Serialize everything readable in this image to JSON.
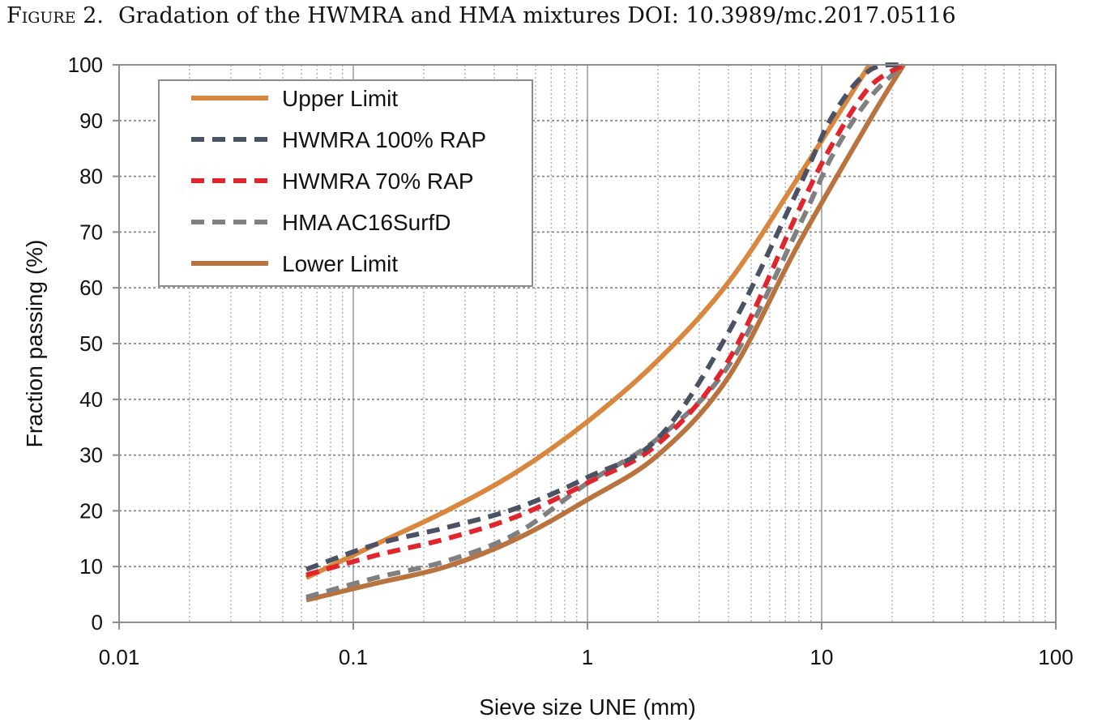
{
  "caption": {
    "figure_label": "Figure 2.",
    "text": "Gradation of the HWMRA and HMA mixtures DOI: 10.3989/mc.2017.05116"
  },
  "chart_data": {
    "type": "line",
    "title": "",
    "xlabel": "Sieve size UNE (mm)",
    "ylabel": "Fraction passing (%)",
    "xscale": "log",
    "xlim": [
      0.01,
      100
    ],
    "ylim": [
      0,
      100
    ],
    "x_ticks": [
      0.01,
      0.1,
      1,
      10,
      100
    ],
    "x_tick_labels": [
      "0.01",
      "0.1",
      "1",
      "10",
      "100"
    ],
    "y_ticks": [
      0,
      10,
      20,
      30,
      40,
      50,
      60,
      70,
      80,
      90,
      100
    ],
    "y_tick_labels": [
      "0",
      "10",
      "20",
      "30",
      "40",
      "50",
      "60",
      "70",
      "80",
      "90",
      "100"
    ],
    "grid": true,
    "legend_position": "top-left",
    "series": [
      {
        "name": "Upper Limit",
        "color": "#d9873f",
        "dash": "solid",
        "x": [
          0.063,
          0.125,
          0.25,
          0.5,
          1,
          2,
          4,
          8,
          16
        ],
        "y": [
          8,
          14,
          20,
          27,
          36,
          47,
          61,
          80,
          100
        ]
      },
      {
        "name": "HWMRA 100% RAP",
        "color": "#4a5264",
        "dash": "dashed",
        "x": [
          0.063,
          0.125,
          0.25,
          0.5,
          1,
          2,
          4,
          8,
          11.2,
          16,
          22.4
        ],
        "y": [
          9.5,
          14,
          17,
          20.5,
          26,
          33,
          52,
          78,
          91,
          99,
          100
        ]
      },
      {
        "name": "HWMRA 70% RAP",
        "color": "#e0262c",
        "dash": "dashed",
        "x": [
          0.063,
          0.125,
          0.25,
          0.5,
          1,
          2,
          4,
          8,
          11.2,
          16,
          22.4
        ],
        "y": [
          8.5,
          12,
          15,
          19,
          25,
          32,
          47,
          74,
          86,
          96,
          100
        ]
      },
      {
        "name": "HMA AC16SurfD",
        "color": "#808080",
        "dash": "dashed",
        "x": [
          0.063,
          0.125,
          0.25,
          0.5,
          1,
          2,
          4,
          8,
          11.2,
          16,
          22.4
        ],
        "y": [
          4.5,
          8,
          11,
          16,
          25,
          33,
          46,
          71,
          84,
          94,
          100
        ]
      },
      {
        "name": "Lower Limit",
        "color": "#b8733e",
        "dash": "solid",
        "x": [
          0.063,
          0.125,
          0.25,
          0.5,
          1,
          2,
          4,
          8,
          16,
          22.4
        ],
        "y": [
          4,
          7,
          10,
          15,
          22,
          30,
          44,
          68,
          90,
          100
        ]
      }
    ]
  }
}
